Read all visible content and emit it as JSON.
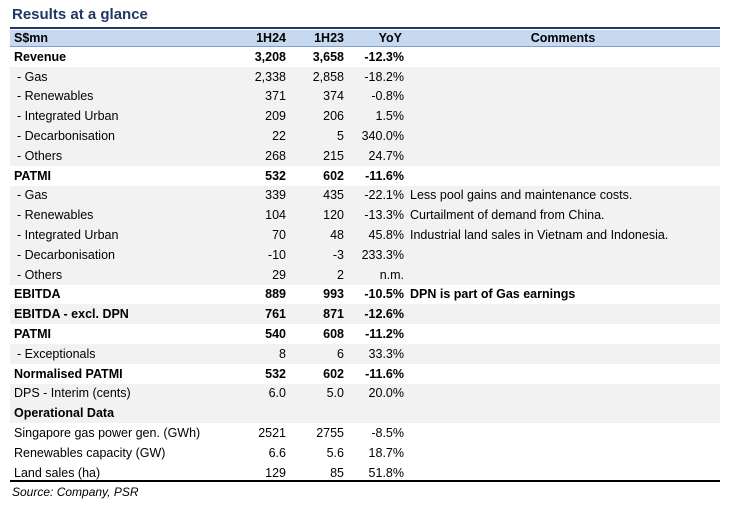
{
  "title": "Results at a glance",
  "headers": {
    "label": "S$mn",
    "h1": "1H24",
    "h2": "1H23",
    "yoy": "YoY",
    "comments": "Comments"
  },
  "rows": [
    {
      "label": "Revenue",
      "v1": "3,208",
      "v2": "3,658",
      "yoy": "-12.3%",
      "comment": "",
      "bold": true,
      "shade": false,
      "indent": false
    },
    {
      "label": " - Gas",
      "v1": "2,338",
      "v2": "2,858",
      "yoy": "-18.2%",
      "comment": "",
      "bold": false,
      "shade": true,
      "indent": true
    },
    {
      "label": " - Renewables",
      "v1": "371",
      "v2": "374",
      "yoy": "-0.8%",
      "comment": "",
      "bold": false,
      "shade": true,
      "indent": true
    },
    {
      "label": " - Integrated Urban",
      "v1": "209",
      "v2": "206",
      "yoy": "1.5%",
      "comment": "",
      "bold": false,
      "shade": true,
      "indent": true
    },
    {
      "label": " - Decarbonisation",
      "v1": "22",
      "v2": "5",
      "yoy": "340.0%",
      "comment": "",
      "bold": false,
      "shade": true,
      "indent": true
    },
    {
      "label": " - Others",
      "v1": "268",
      "v2": "215",
      "yoy": "24.7%",
      "comment": "",
      "bold": false,
      "shade": true,
      "indent": true
    },
    {
      "label": "PATMI",
      "v1": "532",
      "v2": "602",
      "yoy": "-11.6%",
      "comment": "",
      "bold": true,
      "shade": false,
      "indent": false
    },
    {
      "label": " - Gas",
      "v1": "339",
      "v2": "435",
      "yoy": "-22.1%",
      "comment": "Less pool gains and maintenance costs.",
      "bold": false,
      "shade": true,
      "indent": true
    },
    {
      "label": " - Renewables",
      "v1": "104",
      "v2": "120",
      "yoy": "-13.3%",
      "comment": "Curtailment of demand from China.",
      "bold": false,
      "shade": true,
      "indent": true
    },
    {
      "label": " - Integrated Urban",
      "v1": "70",
      "v2": "48",
      "yoy": "45.8%",
      "comment": "Industrial land sales in Vietnam and Indonesia.",
      "bold": false,
      "shade": true,
      "indent": true
    },
    {
      "label": " - Decarbonisation",
      "v1": "-10",
      "v2": "-3",
      "yoy": "233.3%",
      "comment": "",
      "bold": false,
      "shade": true,
      "indent": true
    },
    {
      "label": " - Others",
      "v1": "29",
      "v2": "2",
      "yoy": "n.m.",
      "comment": "",
      "bold": false,
      "shade": true,
      "indent": true
    },
    {
      "label": "EBITDA",
      "v1": "889",
      "v2": "993",
      "yoy": "-10.5%",
      "comment": "DPN is part of Gas earnings",
      "bold": true,
      "shade": false,
      "indent": false
    },
    {
      "label": "EBITDA - excl. DPN",
      "v1": "761",
      "v2": "871",
      "yoy": "-12.6%",
      "comment": "",
      "bold": true,
      "shade": true,
      "indent": false
    },
    {
      "label": "PATMI",
      "v1": "540",
      "v2": "608",
      "yoy": "-11.2%",
      "comment": "",
      "bold": true,
      "shade": false,
      "indent": false
    },
    {
      "label": " - Exceptionals",
      "v1": "8",
      "v2": "6",
      "yoy": "33.3%",
      "comment": "",
      "bold": false,
      "shade": true,
      "indent": true
    },
    {
      "label": "Normalised PATMI",
      "v1": "532",
      "v2": "602",
      "yoy": "-11.6%",
      "comment": "",
      "bold": true,
      "shade": false,
      "indent": false
    },
    {
      "label": "DPS - Interim (cents)",
      "v1": "6.0",
      "v2": "5.0",
      "yoy": "20.0%",
      "comment": "",
      "bold": false,
      "shade": true,
      "indent": false
    },
    {
      "label": "Operational Data",
      "v1": "",
      "v2": "",
      "yoy": "",
      "comment": "",
      "bold": true,
      "shade": true,
      "indent": false
    },
    {
      "label": "Singapore gas power gen. (GWh)",
      "v1": "2521",
      "v2": "2755",
      "yoy": "-8.5%",
      "comment": "",
      "bold": false,
      "shade": false,
      "indent": false
    },
    {
      "label": "Renewables capacity (GW)",
      "v1": "6.6",
      "v2": "5.6",
      "yoy": "18.7%",
      "comment": "",
      "bold": false,
      "shade": false,
      "indent": false
    },
    {
      "label": "Land sales (ha)",
      "v1": "129",
      "v2": "85",
      "yoy": "51.8%",
      "comment": "",
      "bold": false,
      "shade": false,
      "indent": false
    }
  ],
  "source": "Source: Company, PSR"
}
